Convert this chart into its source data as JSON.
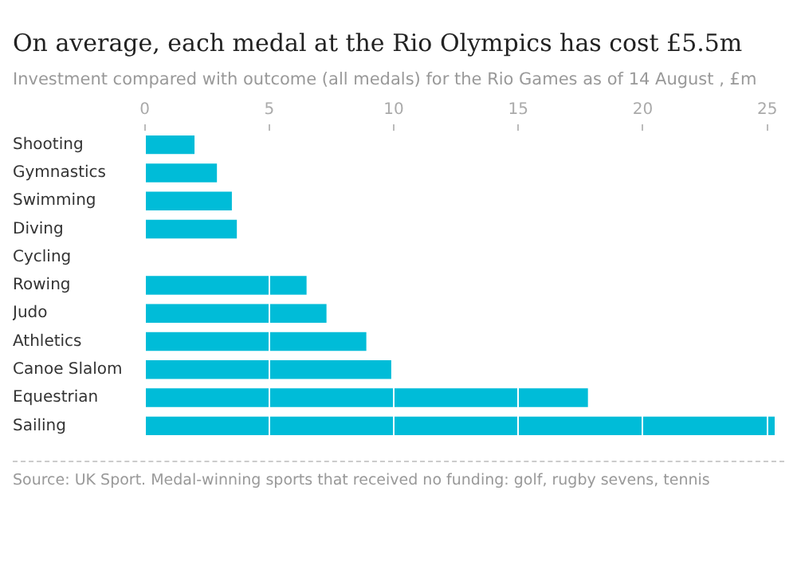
{
  "chart_data": {
    "type": "bar",
    "orientation": "horizontal",
    "title": "On average, each medal at the Rio Olympics has cost £5.5m",
    "subtitle": "Investment compared with outcome (all medals) for the Rio Games as of 14 August , £m",
    "categories": [
      "Shooting",
      "Gymnastics",
      "Swimming",
      "Diving",
      "Cycling",
      "Rowing",
      "Judo",
      "Athletics",
      "Canoe Slalom",
      "Equestrian",
      "Sailing"
    ],
    "values": [
      2.0,
      2.9,
      3.5,
      3.7,
      null,
      6.5,
      7.3,
      8.9,
      9.9,
      17.8,
      25.3
    ],
    "color": "#00bcd8",
    "xlim": [
      0,
      25.3
    ],
    "xticks": [
      0,
      5,
      10,
      15,
      20,
      25
    ],
    "grid": "x",
    "legend": false,
    "annotations": [
      "Source: UK Sport. Medal-winning sports that received no funding: golf, rugby sevens, tennis"
    ]
  }
}
